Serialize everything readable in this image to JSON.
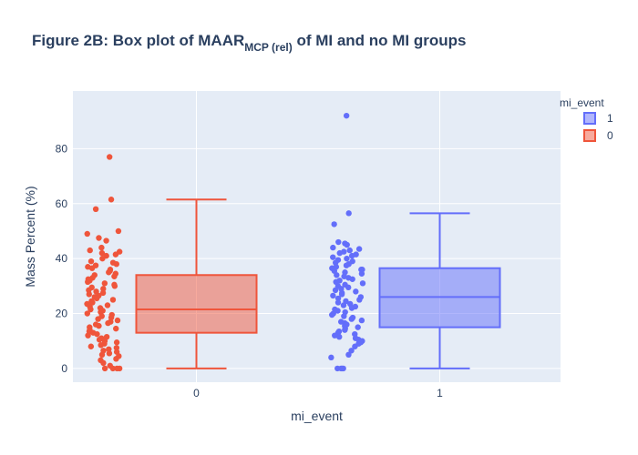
{
  "chart_data": {
    "type": "box",
    "title_prefix": "Figure 2B: Box plot of MAAR",
    "title_subscript": "MCP (rel)",
    "title_suffix": " of MI and no MI groups",
    "xlabel": "mi_event",
    "ylabel": "Mass Percent (%)",
    "ylim": [
      -5,
      101
    ],
    "y_ticks": [
      0,
      20,
      40,
      60,
      80
    ],
    "categories": [
      "0",
      "1"
    ],
    "legend_title": "mi_event",
    "legend_position": "top-right",
    "grid": true,
    "series": [
      {
        "name": "1",
        "category": "1",
        "color": "#636efa",
        "fill": "rgba(99,110,250,0.5)",
        "min": 0,
        "q1": 15,
        "median": 26,
        "q3": 36.5,
        "max": 56.5,
        "points": [
          92,
          56.5,
          52.5,
          46,
          45.5,
          45,
          44,
          43.5,
          43,
          42.5,
          42,
          41.5,
          41,
          40.5,
          40,
          39.5,
          39,
          38.5,
          38,
          37.5,
          37,
          36.5,
          36,
          36,
          35.5,
          35,
          34.5,
          34,
          33.5,
          33,
          32.5,
          32,
          31.5,
          31,
          30.5,
          30,
          29.5,
          29,
          28.5,
          28,
          27.5,
          27,
          26.5,
          26,
          25.5,
          25,
          24.5,
          24,
          23.5,
          23,
          22.5,
          22,
          21.5,
          21,
          20.5,
          20,
          19.5,
          19,
          18.5,
          18,
          17.5,
          17,
          16.5,
          16,
          15.5,
          15,
          14.5,
          14,
          13.5,
          13,
          12.5,
          12,
          11.5,
          11,
          10.5,
          10,
          9.5,
          9,
          8,
          6.5,
          5,
          4,
          0,
          0,
          0,
          0
        ]
      },
      {
        "name": "0",
        "category": "0",
        "color": "#ef553b",
        "fill": "rgba(239,85,59,0.5)",
        "min": 0,
        "q1": 13,
        "median": 21.5,
        "q3": 34,
        "max": 61.5,
        "points": [
          77,
          61.5,
          58,
          50,
          49,
          47.5,
          46.5,
          44,
          43,
          42.5,
          42,
          41.5,
          41,
          40,
          39,
          38.5,
          38,
          37.5,
          37,
          36.5,
          36,
          35.5,
          35,
          34.5,
          34,
          33.5,
          33,
          32.5,
          32,
          31.5,
          31,
          30.5,
          30,
          29.5,
          29,
          28.5,
          28,
          27.5,
          27,
          26.5,
          26,
          25.5,
          25,
          24.5,
          24,
          23.5,
          23,
          22.5,
          22,
          21.5,
          21,
          20.5,
          20,
          19.5,
          19,
          18.5,
          18,
          17.5,
          17,
          16.5,
          16,
          15.5,
          15,
          14.5,
          14,
          13.5,
          13,
          12.5,
          12,
          11.5,
          11,
          10.5,
          10,
          9.5,
          9,
          8.5,
          8,
          7.5,
          7,
          6.5,
          6,
          5.5,
          5,
          4.5,
          3.5,
          3,
          2,
          1,
          0,
          0,
          0,
          0
        ]
      }
    ]
  }
}
